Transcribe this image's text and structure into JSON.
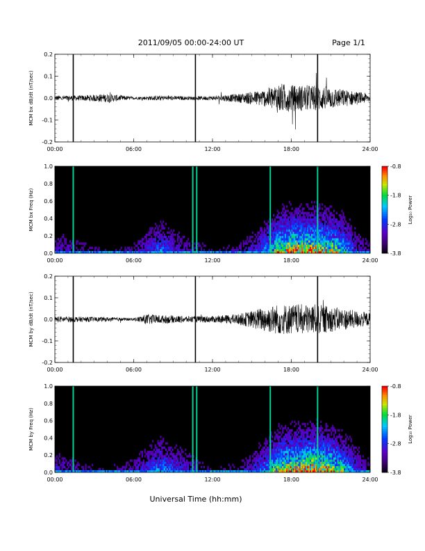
{
  "header": {
    "title": "2011/09/05  00:00-24:00 UT",
    "page": "Page 1/1"
  },
  "footer": {
    "xlabel": "Universal Time (hh:mm)"
  },
  "colorbar": {
    "label": "Log₁₀ Power",
    "ticks": [
      "-0.8",
      "-1.8",
      "-2.8",
      "-3.8"
    ]
  },
  "colors": {
    "trace": "#000000",
    "background": "#000000"
  },
  "chart_data": [
    {
      "type": "line",
      "ylabel": "MCM bx dB/dt (nT/sec)",
      "ylim": [
        -0.2,
        0.2
      ],
      "yticks": [
        "0.2",
        "0.1",
        "0.0",
        "-0.1",
        "-0.2"
      ],
      "xlim": [
        "00:00",
        "24:00"
      ],
      "xticks": [
        "00:00",
        "06:00",
        "12:00",
        "18:00",
        "24:00"
      ],
      "spikes_hours": [
        1.4,
        10.7,
        20.0
      ],
      "envelope": {
        "x_hours": [
          0,
          2,
          4,
          6,
          8,
          10,
          12,
          14,
          15,
          16,
          17,
          18,
          19,
          20,
          21,
          22,
          23,
          24
        ],
        "amplitude": [
          0.012,
          0.012,
          0.02,
          0.006,
          0.012,
          0.008,
          0.01,
          0.02,
          0.03,
          0.04,
          0.07,
          0.06,
          0.06,
          0.06,
          0.05,
          0.04,
          0.03,
          0.02
        ]
      }
    },
    {
      "type": "heatmap",
      "ylabel": "MCM bx Freq (Hz)",
      "ylim": [
        0.0,
        1.0
      ],
      "yticks": [
        "1.0",
        "0.8",
        "0.6",
        "0.4",
        "0.2",
        "0.0"
      ],
      "xlim": [
        "00:00",
        "24:00"
      ],
      "xticks": [
        "00:00",
        "06:00",
        "12:00",
        "18:00",
        "24:00"
      ],
      "zlim": [
        -3.8,
        -0.8
      ],
      "vertical_lines_hours": [
        1.4,
        10.5,
        10.8,
        16.4,
        20.0
      ],
      "activity": {
        "x_hours": [
          0,
          2,
          4,
          6,
          8,
          10,
          12,
          14,
          15,
          16,
          17,
          18,
          19,
          20,
          21,
          22,
          23,
          24
        ],
        "level": [
          0.3,
          0.2,
          0.15,
          0.2,
          0.45,
          0.25,
          0.15,
          0.2,
          0.3,
          0.5,
          0.8,
          0.9,
          0.9,
          0.9,
          0.8,
          0.6,
          0.3,
          0.2
        ]
      }
    },
    {
      "type": "line",
      "ylabel": "MCM by dB/dt (nT/sec)",
      "ylim": [
        -0.2,
        0.2
      ],
      "yticks": [
        "0.2",
        "0.1",
        "0.0",
        "-0.1",
        "-0.2"
      ],
      "xlim": [
        "00:00",
        "24:00"
      ],
      "xticks": [
        "00:00",
        "06:00",
        "12:00",
        "18:00",
        "24:00"
      ],
      "spikes_hours": [
        1.4,
        10.7,
        20.0
      ],
      "envelope": {
        "x_hours": [
          0,
          2,
          4,
          6,
          7,
          8,
          10,
          12,
          14,
          15,
          16,
          17,
          18,
          19,
          20,
          21,
          22,
          23,
          24
        ],
        "amplitude": [
          0.015,
          0.012,
          0.01,
          0.006,
          0.025,
          0.02,
          0.015,
          0.015,
          0.025,
          0.04,
          0.06,
          0.07,
          0.07,
          0.07,
          0.07,
          0.06,
          0.05,
          0.04,
          0.03
        ]
      }
    },
    {
      "type": "heatmap",
      "ylabel": "MCM by Freq (Hz)",
      "ylim": [
        0.0,
        1.0
      ],
      "yticks": [
        "1.0",
        "0.8",
        "0.6",
        "0.4",
        "0.2",
        "0.0"
      ],
      "xlim": [
        "00:00",
        "24:00"
      ],
      "xticks": [
        "00:00",
        "06:00",
        "12:00",
        "18:00",
        "24:00"
      ],
      "zlim": [
        -3.8,
        -0.8
      ],
      "vertical_lines_hours": [
        1.4,
        10.5,
        10.8,
        16.4,
        20.0
      ],
      "activity": {
        "x_hours": [
          0,
          2,
          4,
          6,
          8,
          10,
          12,
          14,
          15,
          16,
          17,
          18,
          19,
          20,
          21,
          22,
          23,
          24
        ],
        "level": [
          0.3,
          0.2,
          0.15,
          0.25,
          0.5,
          0.3,
          0.15,
          0.2,
          0.3,
          0.5,
          0.8,
          0.9,
          0.95,
          0.95,
          0.85,
          0.6,
          0.35,
          0.2
        ]
      }
    }
  ]
}
